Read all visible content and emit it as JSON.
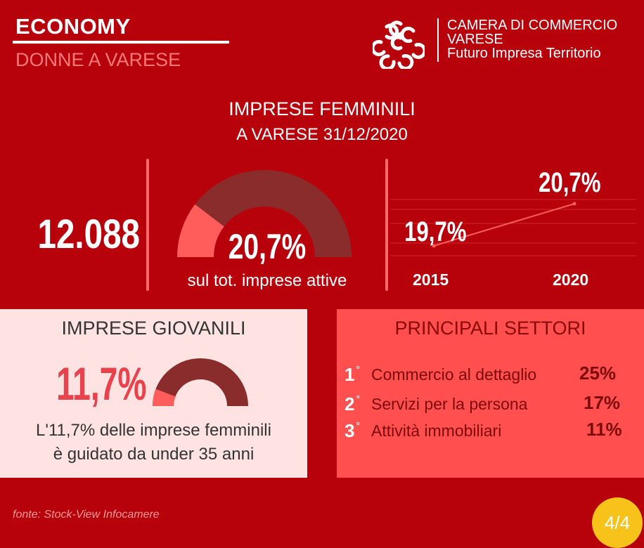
{
  "header": {
    "title": "ECONOMY",
    "subtitle": "DONNE A VARESE"
  },
  "logo": {
    "icon": "camera-commercio-logo",
    "line1": "CAMERA DI COMMERCIO",
    "line2": "VARESE",
    "line3": "Futuro Impresa Territorio"
  },
  "main": {
    "title": "IMPRESE FEMMINILI",
    "subtitle": "A VARESE 31/12/2020",
    "count": "12.088",
    "share_label": "20,7%",
    "share_value": 20.7,
    "share_caption": "sul tot. imprese attive"
  },
  "trend": {
    "start_value_label": "19,7%",
    "end_value_label": "20,7%",
    "start_year": "2015",
    "end_year": "2020",
    "values": [
      19.7,
      20.7
    ]
  },
  "giovanili": {
    "title": "IMPRESE GIOVANILI",
    "value_label": "11,7%",
    "value": 11.7,
    "line1": "L'11,7% delle imprese femminili",
    "line2": "è guidato da under 35 anni"
  },
  "settori": {
    "title": "PRINCIPALI SETTORI",
    "items": [
      {
        "rank": "1",
        "label": "Commercio al dettaglio",
        "pct": "25%"
      },
      {
        "rank": "2",
        "label": "Servizi per la persona",
        "pct": "17%"
      },
      {
        "rank": "3",
        "label": "Attività immobiliari",
        "pct": "11%"
      }
    ]
  },
  "footer": {
    "source": "fonte:  Stock-View Infocamere",
    "page": "4/4"
  },
  "colors": {
    "background": "#b8020b",
    "accent_light": "#ff5c5c",
    "gauge_dark": "#8a2c2c",
    "panel_left": "#ffe3e3",
    "panel_right": "#ff4f4f",
    "badge": "#f7c21a"
  }
}
